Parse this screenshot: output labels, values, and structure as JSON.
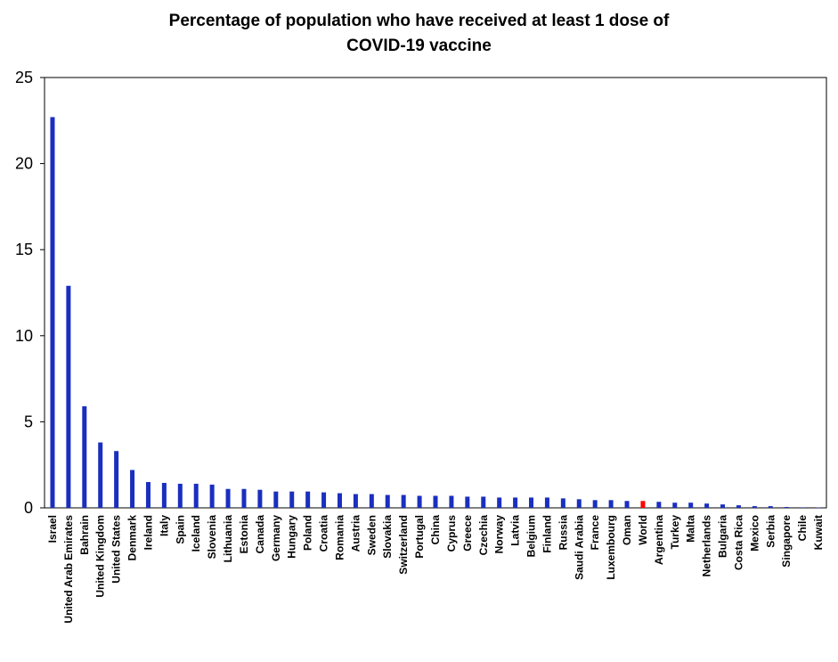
{
  "chart_data": {
    "type": "bar",
    "title_line1": "Percentage of population who have received at least 1 dose of",
    "title_line2": "COVID-19 vaccine",
    "xlabel": "",
    "ylabel": "",
    "ylim": [
      0,
      25
    ],
    "yticks": [
      "0",
      "5",
      "10",
      "15",
      "20",
      "25"
    ],
    "grid": false,
    "legend": "none",
    "colors": {
      "default": "#1a2fbf",
      "highlight": "#ff0000"
    },
    "highlight_category": "World",
    "categories": [
      "Israel",
      "United Arab Emirates",
      "Bahrain",
      "United Kingdom",
      "United States",
      "Denmark",
      "Ireland",
      "Italy",
      "Spain",
      "Iceland",
      "Slovenia",
      "Lithuania",
      "Estonia",
      "Canada",
      "Germany",
      "Hungary",
      "Poland",
      "Croatia",
      "Romania",
      "Austria",
      "Sweden",
      "Slovakia",
      "Switzerland",
      "Portugal",
      "China",
      "Cyprus",
      "Greece",
      "Czechia",
      "Norway",
      "Latvia",
      "Belgium",
      "Finland",
      "Russia",
      "Saudi Arabia",
      "France",
      "Luxembourg",
      "Oman",
      "World",
      "Argentina",
      "Turkey",
      "Malta",
      "Netherlands",
      "Bulgaria",
      "Costa Rica",
      "Mexico",
      "Serbia",
      "Singapore",
      "Chile",
      "Kuwait"
    ],
    "values": [
      22.7,
      12.9,
      5.9,
      3.8,
      3.3,
      2.2,
      1.5,
      1.45,
      1.4,
      1.4,
      1.35,
      1.1,
      1.1,
      1.05,
      0.95,
      0.95,
      0.95,
      0.9,
      0.85,
      0.8,
      0.8,
      0.75,
      0.75,
      0.7,
      0.7,
      0.7,
      0.65,
      0.65,
      0.6,
      0.6,
      0.6,
      0.6,
      0.55,
      0.5,
      0.45,
      0.45,
      0.4,
      0.4,
      0.35,
      0.3,
      0.3,
      0.25,
      0.2,
      0.15,
      0.1,
      0.1,
      0.05,
      0.03,
      0.02
    ]
  }
}
